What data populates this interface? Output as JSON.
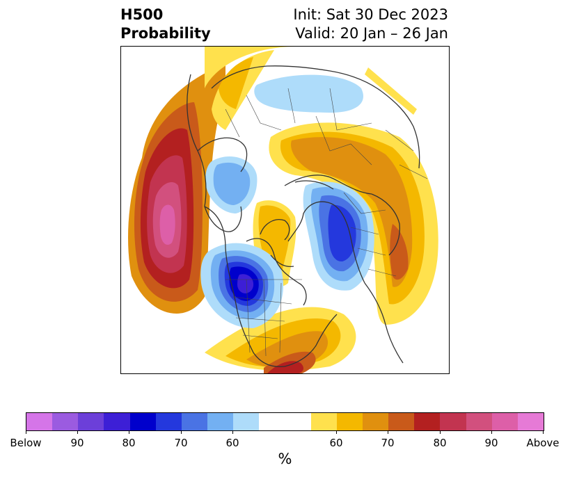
{
  "header": {
    "title_line1": "H500",
    "title_line2": "Probability",
    "init_label": "Init: Sat 30 Dec 2023",
    "valid_label": "Valid: 20 Jan – 26 Jan"
  },
  "colorbar": {
    "unit": "%",
    "below_colors": [
      "#d575e8",
      "#9b5be0",
      "#6c3fd9",
      "#3d1fd6",
      "#0000cc",
      "#2438dd",
      "#4a73e4",
      "#73b0f2",
      "#aedcfa"
    ],
    "neutral_color": "#ffffff",
    "above_colors": [
      "#ffe14d",
      "#f4b800",
      "#e0900f",
      "#c95a1a",
      "#b32020",
      "#c23450",
      "#d2507e",
      "#dd5fa8",
      "#e67ad6"
    ],
    "tick_labels": [
      "Below",
      "90",
      "80",
      "70",
      "60",
      "60",
      "70",
      "80",
      "90",
      "Above"
    ]
  },
  "map": {
    "anomaly_colors": {
      "above_60": "#ffe14d",
      "above_65": "#f4b800",
      "above_70": "#e0900f",
      "above_75": "#c95a1a",
      "above_80": "#b32020",
      "above_85": "#c23450",
      "above_90": "#d2507e",
      "above_95": "#dd5fa8",
      "below_60": "#aedcfa",
      "below_65": "#73b0f2",
      "below_70": "#4a73e4",
      "below_75": "#2438dd",
      "below_80": "#0000cc",
      "below_85": "#3d1fd6"
    }
  }
}
